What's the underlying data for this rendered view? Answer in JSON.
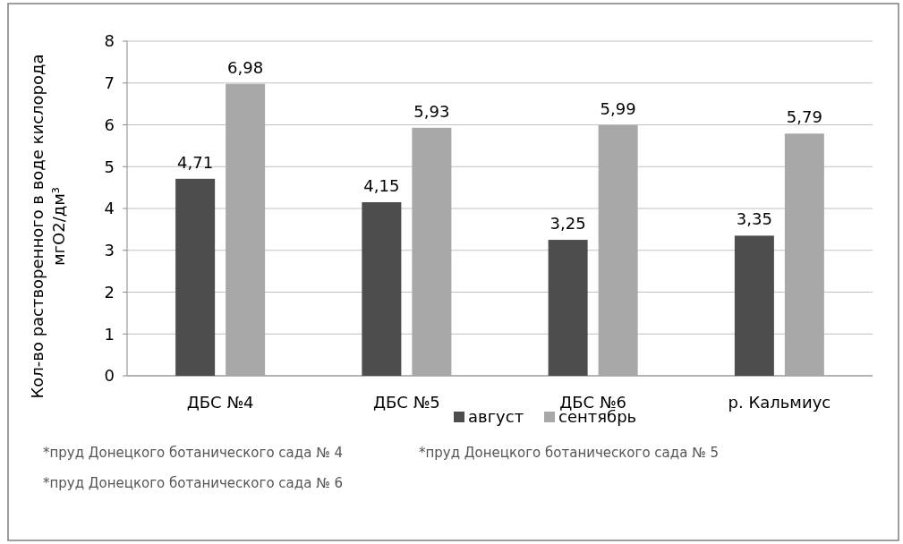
{
  "chart_data": {
    "type": "bar",
    "ylabel": "Кол-во растворенного в воде кислорода\nмгО2/дм³",
    "categories": [
      "ДБС №4",
      "ДБС №5",
      "ДБС №6",
      "р. Кальмиус"
    ],
    "series": [
      {
        "name": "август",
        "color": "#4d4d4d",
        "values": [
          4.71,
          4.15,
          3.25,
          3.35
        ],
        "value_labels": [
          "4,71",
          "4,15",
          "3,25",
          "3,35"
        ]
      },
      {
        "name": "сентябрь",
        "color": "#a8a8a8",
        "values": [
          6.98,
          5.93,
          5.99,
          5.79
        ],
        "value_labels": [
          "6,98",
          "5,93",
          "5,99",
          "5,79"
        ]
      }
    ],
    "ylim": [
      0,
      8
    ],
    "yticks": [
      0,
      1,
      2,
      3,
      4,
      5,
      6,
      7,
      8
    ],
    "grid": "y",
    "legend": "bottom",
    "annotations": [
      "*пруд Донецкого ботанического сада № 4",
      "*пруд Донецкого ботанического сада № 5",
      "*пруд Донецкого ботанического сада № 6"
    ]
  }
}
